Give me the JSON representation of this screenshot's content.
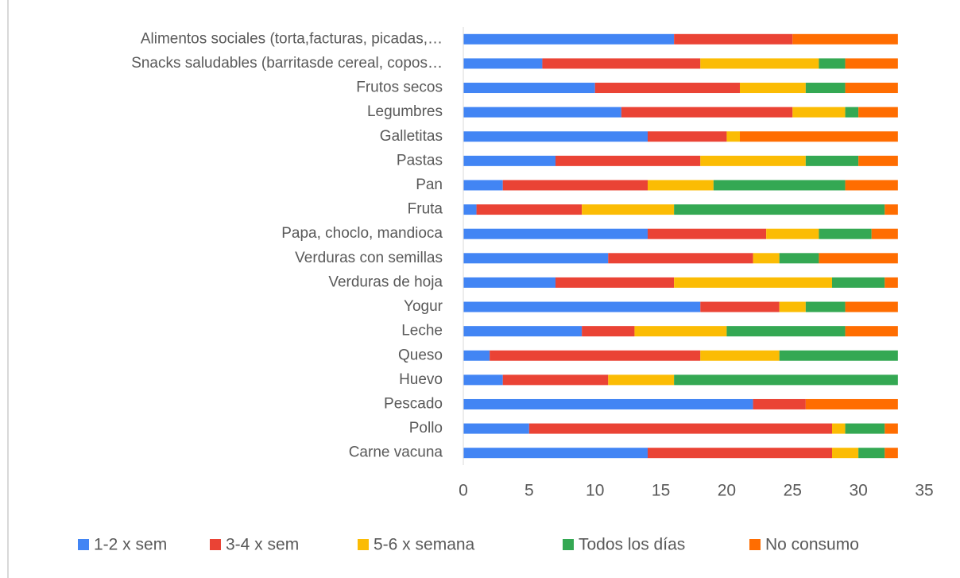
{
  "chart_data": {
    "type": "stacked-barh",
    "categories": [
      "Carne vacuna",
      "Pollo",
      "Pescado ",
      "Huevo",
      "Queso",
      "Leche",
      "Yogur",
      "Verduras de hoja",
      "Verduras con semillas",
      "Papa, choclo, mandioca",
      "Fruta",
      "Pan",
      "Pastas",
      "Galletitas",
      "Legumbres",
      "Frutos secos",
      "Snacks saludables (barritasde cereal, copos…",
      "Alimentos sociales (torta,facturas, picadas,…"
    ],
    "series": [
      {
        "name": "1-2 x sem",
        "color": "#4285f4",
        "values": [
          14,
          5,
          22,
          3,
          2,
          9,
          18,
          7,
          11,
          14,
          1,
          3,
          7,
          14,
          12,
          10,
          6,
          16
        ]
      },
      {
        "name": "3-4 x sem",
        "color": "#ea4335",
        "values": [
          14,
          23,
          4,
          8,
          16,
          4,
          6,
          9,
          11,
          9,
          8,
          11,
          11,
          6,
          13,
          11,
          12,
          9
        ]
      },
      {
        "name": "5-6 x semana",
        "color": "#fbbc04",
        "values": [
          2,
          1,
          0,
          5,
          6,
          7,
          2,
          12,
          2,
          4,
          7,
          5,
          8,
          1,
          4,
          5,
          9,
          0
        ]
      },
      {
        "name": "Todos los días",
        "color": "#34a853",
        "values": [
          2,
          3,
          0,
          17,
          9,
          9,
          3,
          4,
          3,
          4,
          16,
          10,
          4,
          0,
          1,
          3,
          2,
          0
        ]
      },
      {
        "name": "No consumo",
        "color": "#ff6d01",
        "values": [
          1,
          1,
          7,
          0,
          0,
          4,
          4,
          1,
          6,
          2,
          1,
          4,
          3,
          12,
          3,
          4,
          4,
          8
        ]
      }
    ],
    "xlim": [
      0,
      35
    ],
    "xticks": [
      0,
      5,
      10,
      15,
      20,
      25,
      30,
      35
    ]
  }
}
